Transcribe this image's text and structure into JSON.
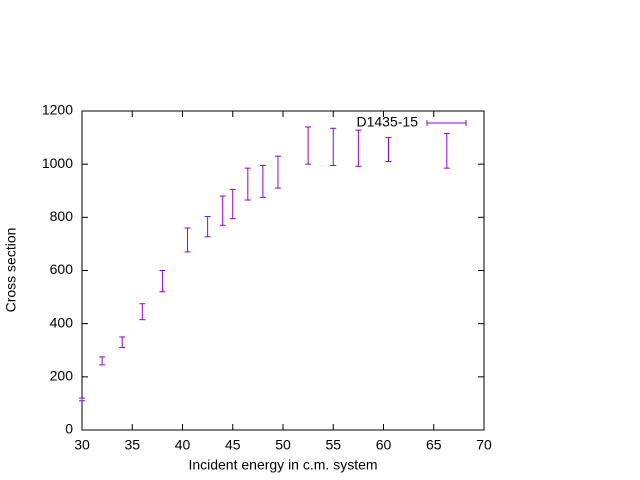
{
  "chart_data": {
    "type": "errorbar",
    "xlabel": "Incident energy in c.m. system",
    "ylabel": "Cross section",
    "x": [
      30,
      32,
      34,
      36,
      38,
      40.5,
      42.5,
      44,
      45,
      46.5,
      48,
      49.5,
      52.5,
      55,
      57.5,
      60.5,
      66.3
    ],
    "series": [
      {
        "name": "D1435-15",
        "color": "#9400d3",
        "values": [
          115,
          260,
          330,
          445,
          560,
          715,
          765,
          825,
          850,
          925,
          935,
          970,
          1070,
          1065,
          1060,
          1055,
          1050
        ],
        "errors": [
          5,
          15,
          20,
          30,
          40,
          45,
          38,
          55,
          55,
          60,
          60,
          60,
          70,
          70,
          68,
          45,
          65
        ]
      }
    ],
    "xlim": [
      30,
      70
    ],
    "ylim": [
      0,
      1200
    ],
    "xticks": [
      30,
      35,
      40,
      45,
      50,
      55,
      60,
      65,
      70
    ],
    "yticks": [
      0,
      200,
      400,
      600,
      800,
      1000,
      1200
    ],
    "legend": "top-right"
  }
}
